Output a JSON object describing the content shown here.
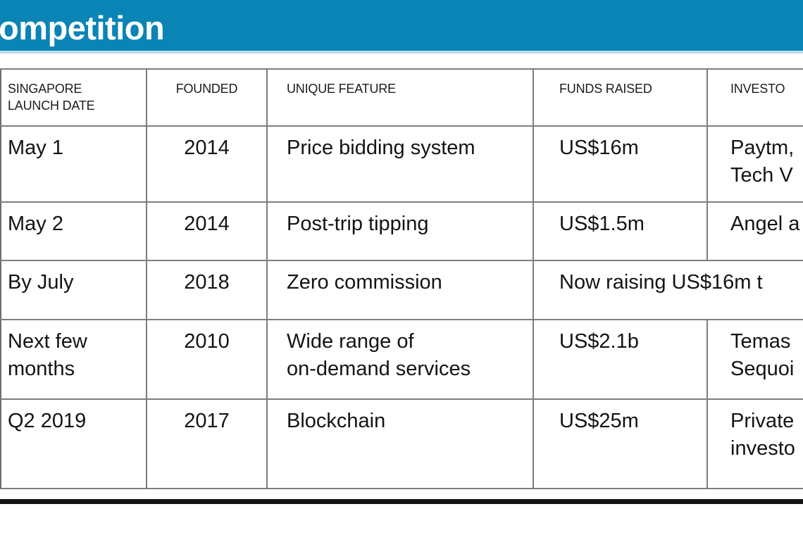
{
  "banner": {
    "title": "ompetition",
    "bg_color": "#0a84b5",
    "text_color": "#ffffff"
  },
  "table": {
    "columns": {
      "launch_date": "SINGAPORE\nLAUNCH DATE",
      "founded": "FOUNDED",
      "unique_feature": "UNIQUE FEATURE",
      "funds_raised": "FUNDS RAISED",
      "investors": "INVESTO"
    },
    "rows": [
      {
        "launch_date": "May 1",
        "founded": "2014",
        "unique_feature": "Price bidding system",
        "funds_raised": "US$16m",
        "investors": "Paytm,\nTech V"
      },
      {
        "launch_date": "May 2",
        "founded": "2014",
        "unique_feature": "Post-trip tipping",
        "funds_raised": "US$1.5m",
        "investors": "Angel a"
      },
      {
        "launch_date": "By July",
        "founded": "2018",
        "unique_feature": "Zero commission",
        "funds_and_investors": "Now raising US$16m t"
      },
      {
        "launch_date": "Next few\nmonths",
        "founded": "2010",
        "unique_feature": "Wide range of\non-demand services",
        "funds_raised": "US$2.1b",
        "investors": "Temas\nSequoi"
      },
      {
        "launch_date": "Q2 2019",
        "founded": "2017",
        "unique_feature": "Blockchain",
        "funds_raised": "US$25m",
        "investors": "Private\ninvesto"
      }
    ]
  },
  "colors": {
    "banner_blue": "#0a84b5",
    "grid_gray": "#7d7d7d",
    "rule_black": "#141414"
  }
}
